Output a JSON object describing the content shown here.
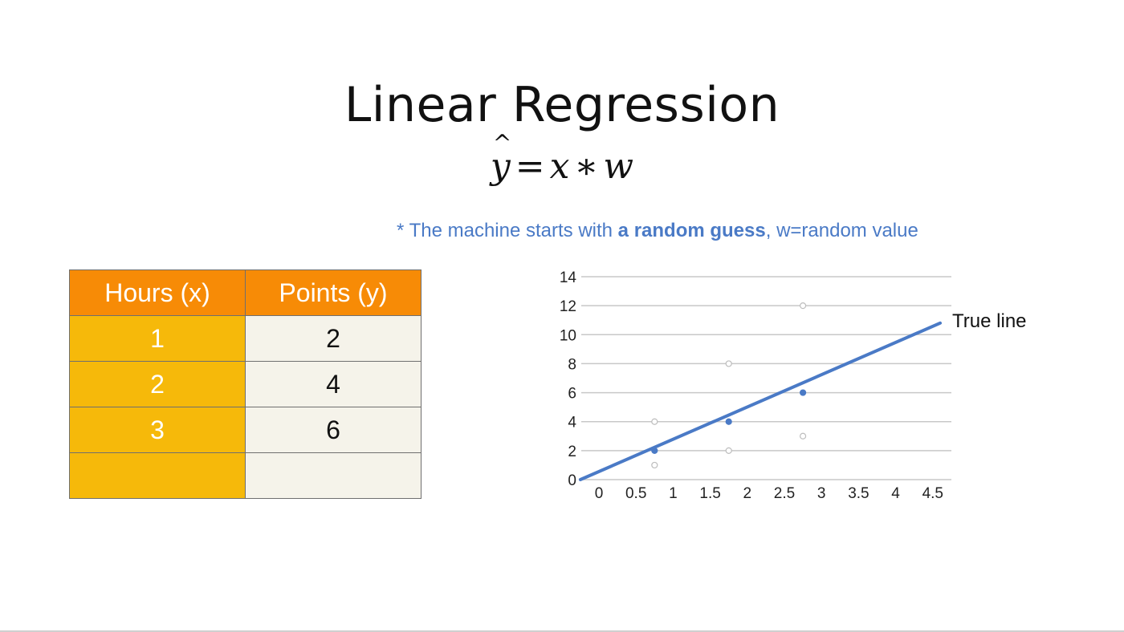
{
  "title": "Linear Regression",
  "formula": {
    "lhs": "y",
    "eq": "=",
    "x": "x",
    "times": "∗",
    "w": "w"
  },
  "note": {
    "prefix": "* The machine starts with ",
    "emphasis": "a random guess",
    "suffix": ", w=random value"
  },
  "table": {
    "headers": [
      "Hours (x)",
      "Points (y)"
    ],
    "rows": [
      [
        "1",
        "2"
      ],
      [
        "2",
        "4"
      ],
      [
        "3",
        "6"
      ],
      [
        "",
        ""
      ]
    ]
  },
  "colors": {
    "accent": "#4a7ac6",
    "header_orange": "#f78b06",
    "hours_yellow": "#f6b90a"
  },
  "chart_data": {
    "type": "line",
    "x_ticks": [
      "0",
      "0.5",
      "1",
      "1.5",
      "2",
      "2.5",
      "3",
      "3.5",
      "4",
      "4.5"
    ],
    "y_ticks": [
      "0",
      "2",
      "4",
      "6",
      "8",
      "10",
      "12",
      "14"
    ],
    "ylim": [
      0,
      14
    ],
    "grid": true,
    "series": [
      {
        "name": "True line",
        "type": "line",
        "color": "#4a7ac6",
        "points": [
          [
            -0.25,
            0
          ],
          [
            4.6,
            10.8
          ]
        ]
      },
      {
        "type": "scatter",
        "color": "#4a7ac6",
        "points": [
          [
            0.75,
            2
          ],
          [
            1.75,
            4
          ],
          [
            2.75,
            6
          ]
        ]
      },
      {
        "type": "scatter",
        "color": "#bdbdbd",
        "points": [
          [
            0.75,
            1
          ],
          [
            0.75,
            4
          ],
          [
            1.75,
            2
          ],
          [
            1.75,
            8
          ],
          [
            2.75,
            3
          ],
          [
            2.75,
            12
          ]
        ]
      }
    ]
  }
}
